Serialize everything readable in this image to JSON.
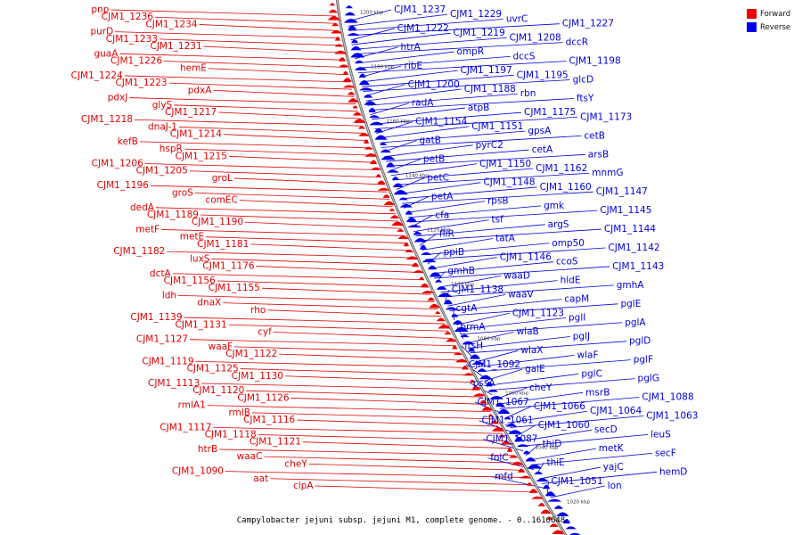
{
  "legend": {
    "forward_label": "Forward",
    "reverse_label": "Reverse",
    "forward_color": "#ee0000",
    "reverse_color": "#0000ee"
  },
  "caption": "Campylobacter jejuni subsp. jejuni M1, complete genome. - 0..1616648",
  "ticks": [
    "1200 kbp",
    "1180 kbp",
    "1160 kbp",
    "1140 kbp",
    "1120 kbp",
    "1100 kbp",
    "1080 kbp",
    "1060 kbp",
    "1040 kbp",
    "1020 kbp"
  ],
  "forward_labels": [
    "pnp",
    "CJM1_1236",
    "CJM1_1234",
    "purD",
    "CJM1_1233",
    "CJM1_1231",
    "guaA",
    "CJM1_1226",
    "hemE",
    "CJM1_1224",
    "CJM1_1223",
    "pdxA",
    "pdxJ",
    "glyS",
    "CJM1_1217",
    "CJM1_1218",
    "dnaJ-1",
    "CJM1_1214",
    "kefB",
    "hspR",
    "CJM1_1215",
    "CJM1_1206",
    "CJM1_1205",
    "groL",
    "CJM1_1196",
    "groS",
    "comEC",
    "dedA",
    "CJM1_1189",
    "CJM1_1190",
    "metF",
    "metE",
    "CJM1_1181",
    "CJM1_1182",
    "luxS",
    "CJM1_1176",
    "dctA",
    "CJM1_1156",
    "CJM1_1155",
    "ldh",
    "dnaX",
    "rho",
    "CJM1_1139",
    "CJM1_1131",
    "cyf",
    "CJM1_1127",
    "waaF",
    "CJM1_1122",
    "CJM1_1119",
    "CJM1_1125",
    "CJM1_1130",
    "CJM1_1113",
    "CJM1_1120",
    "CJM1_1126",
    "rmlA1",
    "rmlB",
    "CJM1_1116",
    "CJM1_1117",
    "CJM1_1118",
    "CJM1_1121",
    "htrB",
    "waaC",
    "cheY",
    "CJM1_1090",
    "aat",
    "clpA"
  ],
  "reverse_labels": [
    "CJM1_1237",
    "CJM1_1229",
    "uvrC",
    "CJM1_1227",
    "CJM1_1222",
    "CJM1_1219",
    "CJM1_1208",
    "dccR",
    "htrA",
    "ompR",
    "dccS",
    "CJM1_1198",
    "ribE",
    "CJM1_1197",
    "CJM1_1195",
    "glcD",
    "CJM1_1200",
    "CJM1_1188",
    "rbn",
    "ftsY",
    "radA",
    "atpB",
    "CJM1_1175",
    "CJM1_1173",
    "CJM1_1154",
    "CJM1_1151",
    "gpsA",
    "cetB",
    "gatB",
    "pyrC2",
    "cetA",
    "arsB",
    "petB",
    "CJM1_1150",
    "CJM1_1162",
    "mnmG",
    "petC",
    "CJM1_1148",
    "CJM1_1160",
    "CJM1_1147",
    "petA",
    "rpsB",
    "gmk",
    "CJM1_1145",
    "cfa",
    "tsf",
    "argS",
    "CJM1_1144",
    "fliR",
    "tatA",
    "omp50",
    "CJM1_1142",
    "ppiB",
    "CJM1_1146",
    "ccoS",
    "CJM1_1143",
    "gmhB",
    "waaD",
    "hldE",
    "gmhA",
    "CJM1_1138",
    "waaV",
    "capM",
    "pglE",
    "cgtA",
    "CJM1_1123",
    "pglI",
    "pglA",
    "prmA",
    "wlaB",
    "pglJ",
    "pglD",
    "ftsH",
    "wlaX",
    "wlaF",
    "pglF",
    "CJM1_1092",
    "galE",
    "pglC",
    "pglG",
    "pssA",
    "cheY",
    "msrB",
    "CJM1_1088",
    "CJM1_1067",
    "CJM1_1066",
    "CJM1_1064",
    "CJM1_1063",
    "CJM1_1061",
    "CJM1_1060",
    "secD",
    "leuS",
    "CJM1_1087",
    "thiD",
    "metK",
    "secF",
    "folC",
    "thiE",
    "yajC",
    "hemD",
    "mfd",
    "CJM1_1051",
    "lon"
  ]
}
